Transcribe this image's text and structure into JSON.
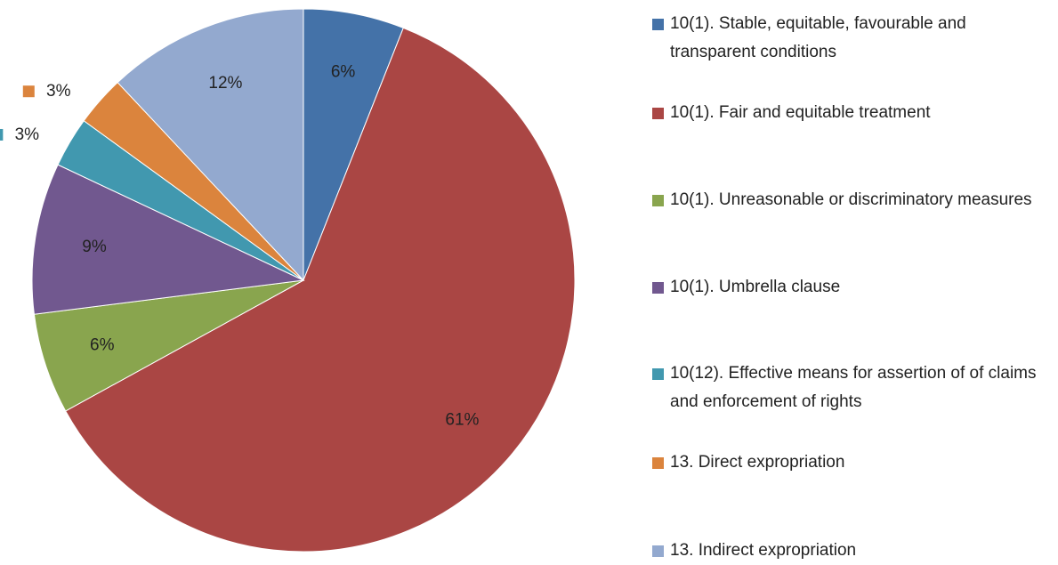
{
  "chart_data": {
    "type": "pie",
    "categories": [
      "10(1). Stable, equitable, favourable and transparent conditions",
      "10(1). Fair and equitable treatment",
      "10(1). Unreasonable or discriminatory measures",
      "10(1). Umbrella clause",
      "10(12). Effective means for assertion of of claims and enforcement of rights",
      "13. Direct expropriation",
      "13. Indirect expropriation"
    ],
    "values": [
      6,
      61,
      6,
      9,
      3,
      3,
      12
    ],
    "value_labels": [
      "6%",
      "61%",
      "6%",
      "9%",
      "3%",
      "3%",
      "12%"
    ],
    "colors": [
      "#4472a8",
      "#aa4644",
      "#89a54e",
      "#71588f",
      "#4198af",
      "#db843d",
      "#93a9cf"
    ],
    "legend": "right"
  }
}
